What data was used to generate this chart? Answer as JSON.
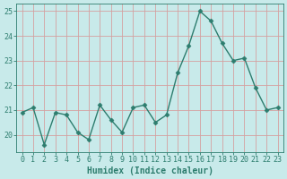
{
  "x": [
    0,
    1,
    2,
    3,
    4,
    5,
    6,
    7,
    8,
    9,
    10,
    11,
    12,
    13,
    14,
    15,
    16,
    17,
    18,
    19,
    20,
    21,
    22,
    23
  ],
  "y": [
    20.9,
    21.1,
    19.6,
    20.9,
    20.8,
    20.1,
    19.8,
    21.2,
    20.6,
    20.1,
    21.1,
    21.2,
    20.5,
    20.8,
    22.5,
    23.6,
    25.0,
    24.6,
    23.7,
    23.0,
    23.1,
    21.9,
    21.0,
    21.1
  ],
  "line_color": "#2d7d6e",
  "marker": "D",
  "markersize": 2.5,
  "linewidth": 1.0,
  "xlabel": "Humidex (Indice chaleur)",
  "xlim": [
    -0.5,
    23.5
  ],
  "ylim": [
    19.3,
    25.3
  ],
  "yticks": [
    20,
    21,
    22,
    23,
    24,
    25
  ],
  "xticks": [
    0,
    1,
    2,
    3,
    4,
    5,
    6,
    7,
    8,
    9,
    10,
    11,
    12,
    13,
    14,
    15,
    16,
    17,
    18,
    19,
    20,
    21,
    22,
    23
  ],
  "bg_color": "#c8eaea",
  "grid_color": "#d4a0a0",
  "tick_color": "#2d7d6e",
  "label_color": "#2d7d6e",
  "xlabel_fontsize": 7,
  "tick_fontsize": 6,
  "spine_color": "#2d7d6e"
}
